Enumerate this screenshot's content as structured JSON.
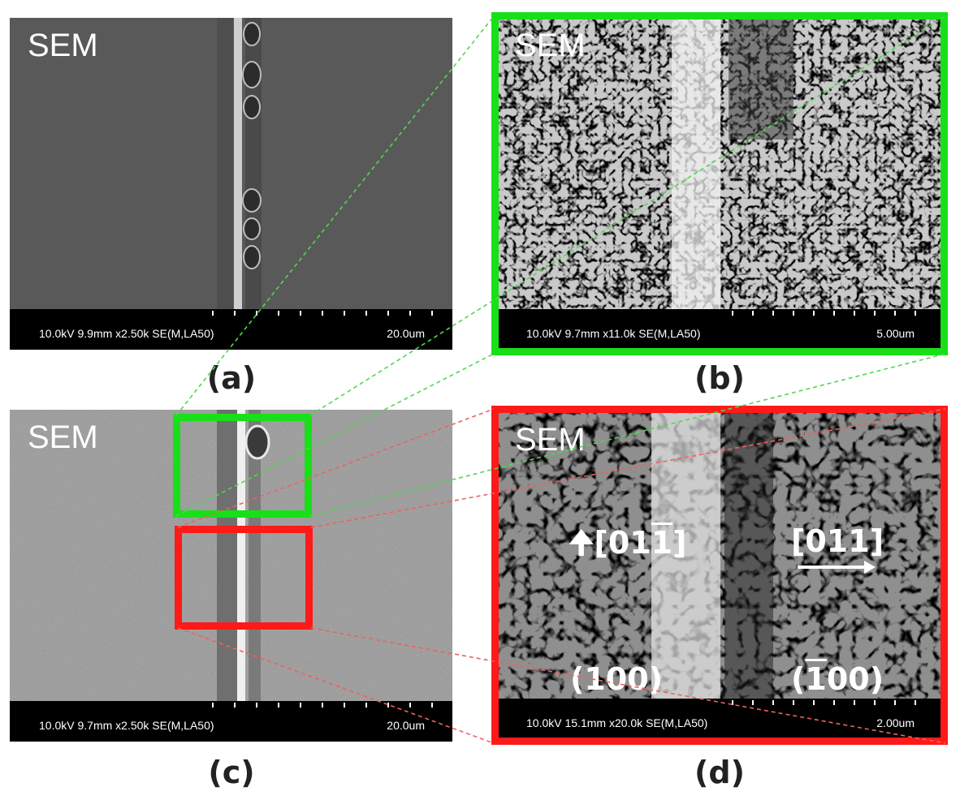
{
  "panels": {
    "a": {
      "caption": "(a)",
      "sem": "SEM",
      "meta": "10.0kV 9.9mm x2.50k SE(M,LA50)",
      "scale": "20.0um"
    },
    "b": {
      "caption": "(b)",
      "sem": "SEM",
      "meta": "10.0kV 9.7mm x11.0k SE(M,LA50)",
      "scale": "5.00um"
    },
    "c": {
      "caption": "(c)",
      "sem": "SEM",
      "meta": "10.0kV 9.7mm x2.50k SE(M,LA50)",
      "scale": "20.0um"
    },
    "d": {
      "caption": "(d)",
      "sem": "SEM",
      "meta": "10.0kV 15.1mm x20.0k SE(M,LA50)",
      "scale": "2.00um",
      "labels": {
        "dir_left_prefix": "[01",
        "dir_left_bar": "1",
        "dir_left_suffix": "]",
        "dir_right": "[011]",
        "plane_left": "(100)",
        "plane_right_open": "(",
        "plane_right_bar": "1",
        "plane_right_rest": "00)"
      }
    }
  },
  "colors": {
    "green": "#18e018",
    "red": "#ff1a1a"
  }
}
